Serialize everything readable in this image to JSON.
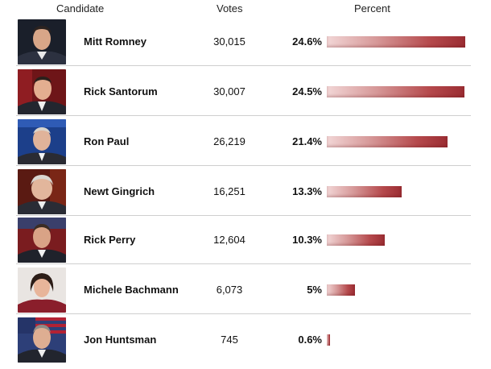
{
  "header": {
    "candidate": "Candidate",
    "votes": "Votes",
    "percent": "Percent"
  },
  "colors": {
    "bar_light": "#f2d6d6",
    "bar_dark": "#9b2d33",
    "divider": "#cfcfcf"
  },
  "candidates": [
    {
      "name": "Mitt Romney",
      "votes": "30,015",
      "percent_label": "24.6%",
      "percent": 24.6,
      "photo": "mitt-romney-photo"
    },
    {
      "name": "Rick Santorum",
      "votes": "30,007",
      "percent_label": "24.5%",
      "percent": 24.5,
      "photo": "rick-santorum-photo"
    },
    {
      "name": "Ron Paul",
      "votes": "26,219",
      "percent_label": "21.4%",
      "percent": 21.4,
      "photo": "ron-paul-photo"
    },
    {
      "name": "Newt Gingrich",
      "votes": "16,251",
      "percent_label": "13.3%",
      "percent": 13.3,
      "photo": "newt-gingrich-photo"
    },
    {
      "name": "Rick Perry",
      "votes": "12,604",
      "percent_label": "10.3%",
      "percent": 10.3,
      "photo": "rick-perry-photo"
    },
    {
      "name": "Michele Bachmann",
      "votes": "6,073",
      "percent_label": "5%",
      "percent": 5,
      "photo": "michele-bachmann-photo"
    },
    {
      "name": "Jon Huntsman",
      "votes": "745",
      "percent_label": "0.6%",
      "percent": 0.6,
      "photo": "jon-huntsman-photo"
    }
  ]
}
